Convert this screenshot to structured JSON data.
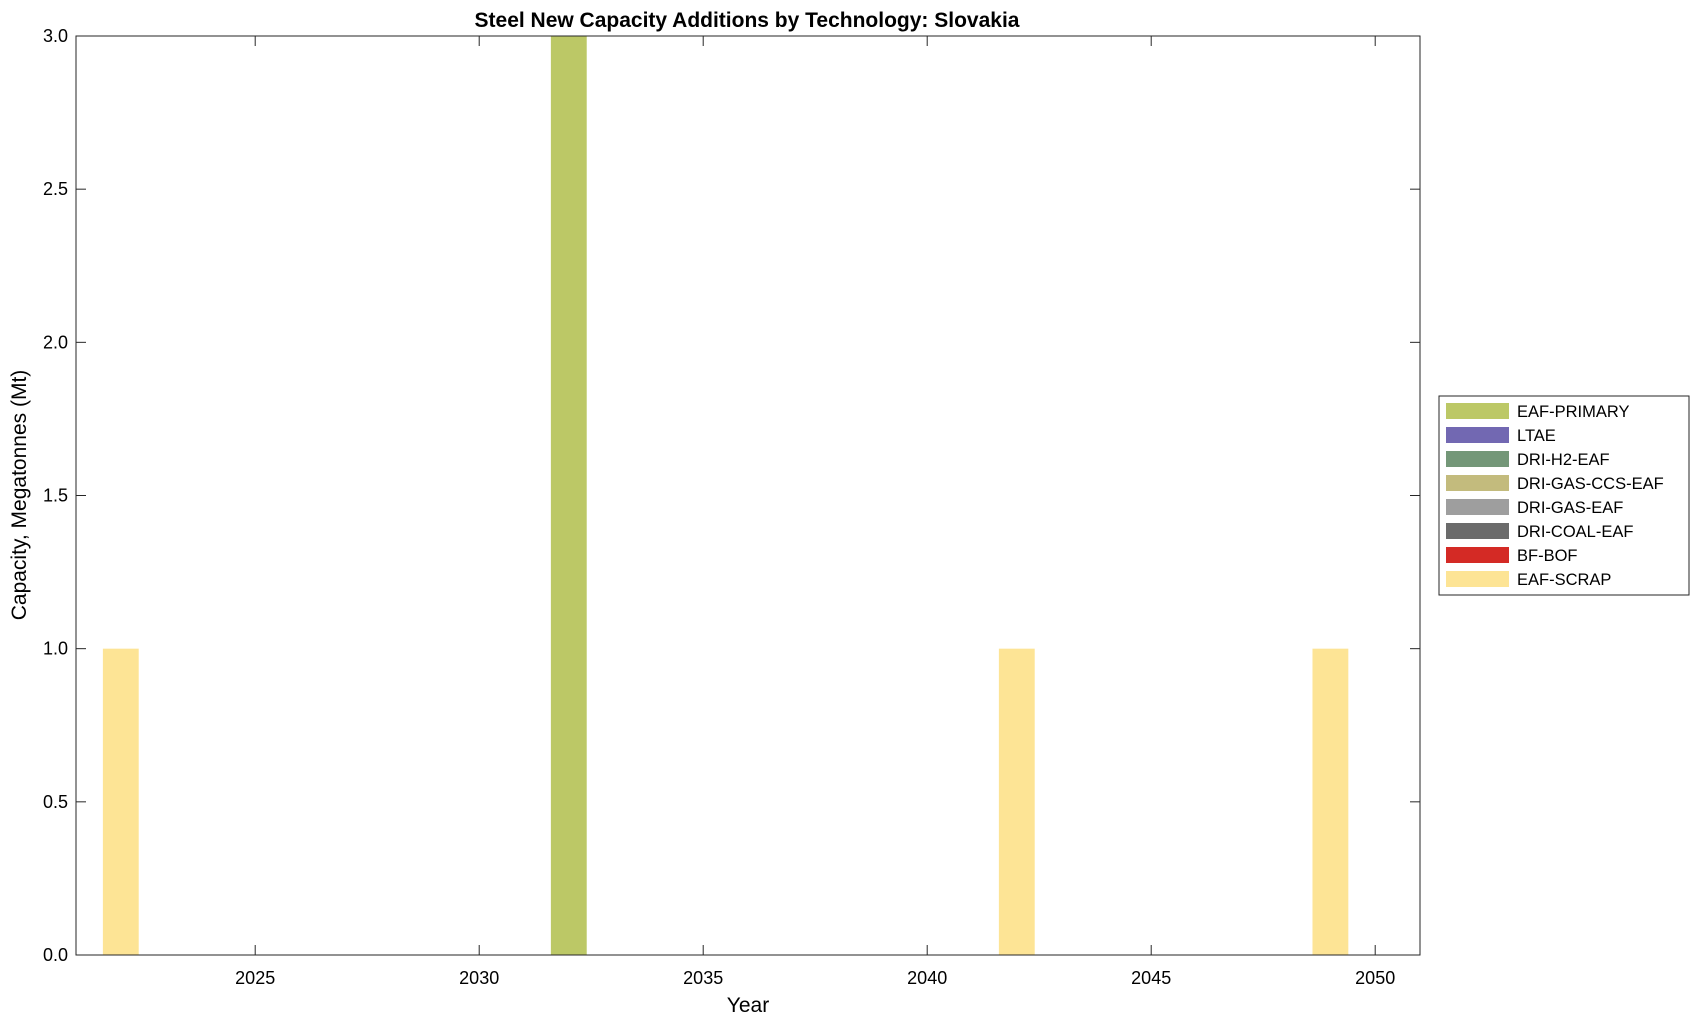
{
  "chart_data": {
    "type": "bar",
    "stacked": true,
    "title": "Steel New Capacity Additions by Technology: Slovakia",
    "xlabel": "Year",
    "ylabel": "Capacity, Megatonnes (Mt)",
    "xlim": [
      2021,
      2051
    ],
    "ylim": [
      0,
      3
    ],
    "x_ticks": [
      2025,
      2030,
      2035,
      2040,
      2045,
      2050
    ],
    "y_ticks": [
      0,
      0.5,
      1,
      1.5,
      2,
      2.5,
      3
    ],
    "y_tick_labels": [
      "0.0",
      "0.5",
      "1.0",
      "1.5",
      "2.0",
      "2.5",
      "3.0"
    ],
    "grid": false,
    "legend_position": "outside-right",
    "x": [
      2022,
      2032,
      2042,
      2049
    ],
    "series": [
      {
        "name": "EAF-PRIMARY",
        "color": "#bcc866",
        "values": [
          0,
          3,
          0,
          0
        ]
      },
      {
        "name": "LTAE",
        "color": "#7268b2",
        "values": [
          0,
          0,
          0,
          0
        ]
      },
      {
        "name": "DRI-H2-EAF",
        "color": "#749778",
        "values": [
          0,
          0,
          0,
          0
        ]
      },
      {
        "name": "DRI-GAS-CCS-EAF",
        "color": "#c3bb7d",
        "values": [
          0,
          0,
          0,
          0
        ]
      },
      {
        "name": "DRI-GAS-EAF",
        "color": "#9e9e9e",
        "values": [
          0,
          0,
          0,
          0
        ]
      },
      {
        "name": "DRI-COAL-EAF",
        "color": "#6b6b6b",
        "values": [
          0,
          0,
          0,
          0
        ]
      },
      {
        "name": "BF-BOF",
        "color": "#d42a25",
        "values": [
          0,
          0,
          0,
          0
        ]
      },
      {
        "name": "EAF-SCRAP",
        "color": "#fde495",
        "values": [
          1,
          0,
          1,
          1
        ]
      }
    ]
  }
}
